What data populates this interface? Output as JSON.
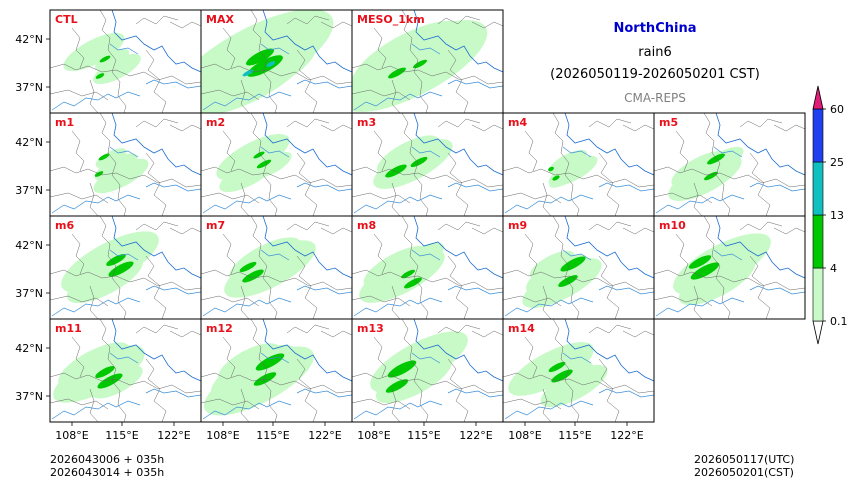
{
  "title": {
    "region": "NorthChina",
    "variable": "rain6",
    "period": "(2026050119-2026050201 CST)",
    "source": "CMA-REPS"
  },
  "colors": {
    "region_title": "#0000cc",
    "source": "#808080",
    "panel_label": "#e8101a",
    "river": "#3a8fd8",
    "border": "#666666"
  },
  "panels": [
    {
      "label": "CTL",
      "row": 0,
      "col": 0,
      "rain": [
        [
          1,
          1.0
        ],
        [
          2,
          0.3
        ]
      ]
    },
    {
      "label": "MAX",
      "row": 0,
      "col": 1,
      "rain": [
        [
          1,
          2.6
        ],
        [
          2,
          1.0
        ],
        [
          3,
          0.3
        ]
      ]
    },
    {
      "label": "MESO_1km",
      "row": 0,
      "col": 2,
      "rain": [
        [
          1,
          2.4
        ],
        [
          2,
          0.5
        ]
      ]
    },
    {
      "label": "m1",
      "row": 1,
      "col": 0,
      "rain": [
        [
          1,
          0.9
        ],
        [
          2,
          0.3
        ]
      ]
    },
    {
      "label": "m2",
      "row": 1,
      "col": 1,
      "rain": [
        [
          1,
          1.2
        ],
        [
          2,
          0.4
        ]
      ]
    },
    {
      "label": "m3",
      "row": 1,
      "col": 2,
      "rain": [
        [
          1,
          1.3
        ],
        [
          2,
          0.6
        ]
      ]
    },
    {
      "label": "m4",
      "row": 1,
      "col": 3,
      "rain": [
        [
          1,
          0.8
        ],
        [
          2,
          0.2
        ]
      ]
    },
    {
      "label": "m5",
      "row": 1,
      "col": 4,
      "rain": [
        [
          1,
          1.2
        ],
        [
          2,
          0.5
        ]
      ]
    },
    {
      "label": "m6",
      "row": 2,
      "col": 0,
      "rain": [
        [
          1,
          1.6
        ],
        [
          2,
          0.7
        ]
      ]
    },
    {
      "label": "m7",
      "row": 2,
      "col": 1,
      "rain": [
        [
          1,
          1.5
        ],
        [
          2,
          0.6
        ]
      ]
    },
    {
      "label": "m8",
      "row": 2,
      "col": 2,
      "rain": [
        [
          1,
          1.4
        ],
        [
          2,
          0.5
        ]
      ]
    },
    {
      "label": "m9",
      "row": 2,
      "col": 3,
      "rain": [
        [
          1,
          1.3
        ],
        [
          2,
          0.7
        ]
      ]
    },
    {
      "label": "m10",
      "row": 2,
      "col": 4,
      "rain": [
        [
          1,
          1.6
        ],
        [
          2,
          0.8
        ]
      ]
    },
    {
      "label": "m11",
      "row": 3,
      "col": 0,
      "rain": [
        [
          1,
          1.5
        ],
        [
          2,
          0.7
        ]
      ]
    },
    {
      "label": "m12",
      "row": 3,
      "col": 1,
      "rain": [
        [
          1,
          1.8
        ],
        [
          2,
          0.8
        ]
      ]
    },
    {
      "label": "m13",
      "row": 3,
      "col": 2,
      "rain": [
        [
          1,
          1.6
        ],
        [
          2,
          0.8
        ]
      ]
    },
    {
      "label": "m14",
      "row": 3,
      "col": 3,
      "rain": [
        [
          1,
          1.4
        ],
        [
          2,
          0.6
        ]
      ]
    }
  ],
  "lat_ticks": [
    "42°N",
    "37°N"
  ],
  "lon_ticks": [
    "108°E",
    "115°E",
    "122°E"
  ],
  "colorbar": {
    "levels": [
      "0.1",
      "4",
      "13",
      "25",
      "60"
    ],
    "colors": [
      "#c8fac8",
      "#00c800",
      "#10c0c0",
      "#2040f0",
      "#e01e78"
    ]
  },
  "footer": {
    "left_line1": "2026043006  +  035h",
    "left_line2": "2026043014  +  035h",
    "right_line1": "2026050117(UTC)",
    "right_line2": "2026050201(CST)"
  }
}
